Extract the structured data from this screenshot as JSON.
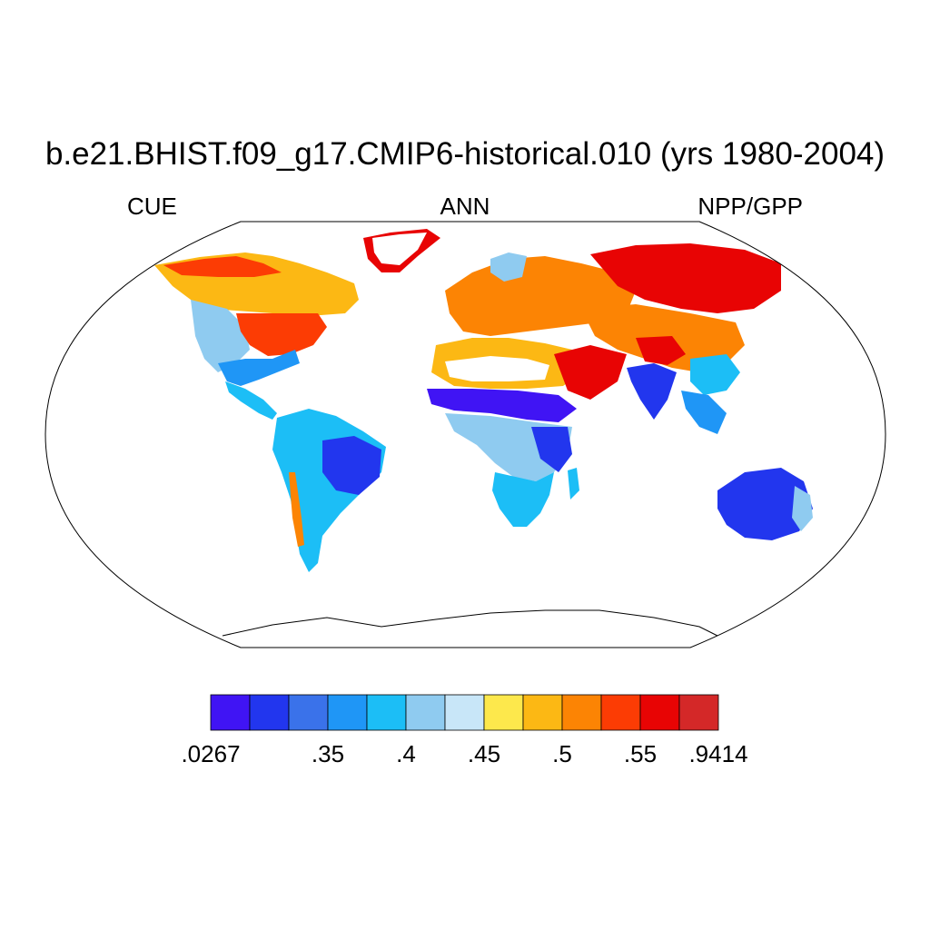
{
  "title": "b.e21.BHIST.f09_g17.CMIP6-historical.010 (yrs 1980-2004)",
  "subtitle_left": "CUE",
  "subtitle_center": "ANN",
  "subtitle_right": "NPP/GPP",
  "colorbar": {
    "colors": [
      "#4014f4",
      "#2236ee",
      "#3a72ea",
      "#1f96f6",
      "#1cbef6",
      "#8fcbf0",
      "#c8e6f8",
      "#fde84c",
      "#fcb814",
      "#fc8404",
      "#fc3c04",
      "#e80404",
      "#d42828"
    ],
    "tick_labels": [
      ".0267",
      ".35",
      ".4",
      ".45",
      ".5",
      ".55",
      ".9414"
    ],
    "tick_values": [
      0.0267,
      0.35,
      0.4,
      0.45,
      0.5,
      0.55,
      0.9414
    ]
  },
  "regions": [
    {
      "name": "north-america-boreal",
      "color": "#fcb814"
    },
    {
      "name": "north-america-east",
      "color": "#fc3c04"
    },
    {
      "name": "north-america-west",
      "color": "#8fcbf0"
    },
    {
      "name": "amazon",
      "color": "#1cbef6"
    },
    {
      "name": "brazil-east",
      "color": "#2236ee"
    },
    {
      "name": "sahel",
      "color": "#4014f4"
    },
    {
      "name": "africa-south",
      "color": "#1cbef6"
    },
    {
      "name": "eurasia-north",
      "color": "#e80404"
    },
    {
      "name": "europe",
      "color": "#fc8404"
    },
    {
      "name": "middle-east",
      "color": "#e80404"
    },
    {
      "name": "australia",
      "color": "#2236ee"
    },
    {
      "name": "india",
      "color": "#2236ee"
    }
  ]
}
